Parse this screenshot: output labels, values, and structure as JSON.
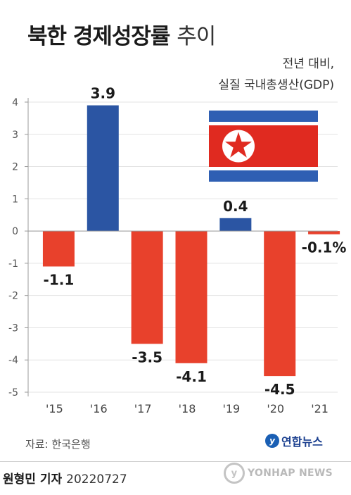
{
  "title_bold": "북한 경제성장률",
  "title_light": "추이",
  "subtitle_line1": "전년 대비,",
  "subtitle_line2": "실질 국내총생산(GDP)",
  "source": "자료: 한국은행",
  "agency_logo_text": "연합뉴스",
  "credit_name": "원형민 기자",
  "credit_date": "20220727",
  "watermark_text": "YONHAP NEWS",
  "colors": {
    "positive": "#2b55a3",
    "negative": "#e8412c",
    "axis": "#999999",
    "grid": "#e3e3e3",
    "flag_blue": "#2f5fb3",
    "flag_red": "#e02a20",
    "flag_star": "#e02a20"
  },
  "chart_data": {
    "type": "bar",
    "categories": [
      "'15",
      "'16",
      "'17",
      "'18",
      "'19",
      "'20",
      "'21"
    ],
    "values": [
      -1.1,
      3.9,
      -3.5,
      -4.1,
      0.4,
      -4.5,
      -0.1
    ],
    "value_labels": [
      "-1.1",
      "3.9",
      "-3.5",
      "-4.1",
      "0.4",
      "-4.5",
      "-0.1%"
    ],
    "yticks": [
      "4",
      "3",
      "2",
      "1",
      "0",
      "-1",
      "-2",
      "-3",
      "-4",
      "-5"
    ],
    "ylim": [
      -5,
      4
    ],
    "grid": true,
    "title": "북한 경제성장률 추이"
  }
}
